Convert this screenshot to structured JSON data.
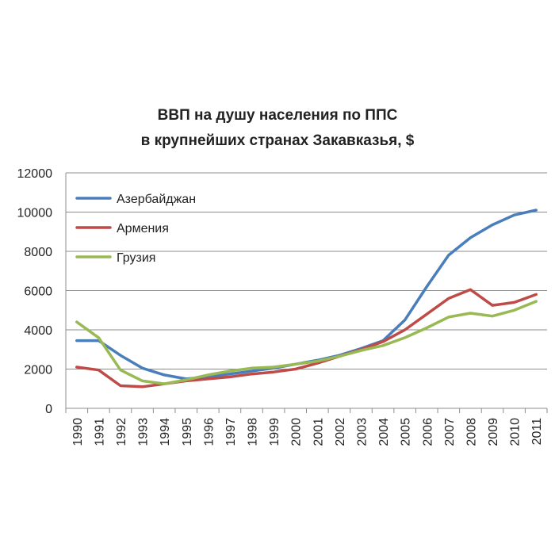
{
  "chart_data": {
    "type": "line",
    "title_line1": "ВВП на душу населения по ППС",
    "title_line2": "в крупнейших странах Закавказья, $",
    "xlabel": "",
    "ylabel": "",
    "categories": [
      "1990",
      "1991",
      "1992",
      "1993",
      "1994",
      "1995",
      "1996",
      "1997",
      "1998",
      "1999",
      "2000",
      "2001",
      "2002",
      "2003",
      "2004",
      "2005",
      "2006",
      "2007",
      "2008",
      "2009",
      "2010",
      "2011"
    ],
    "ylim": [
      0,
      12000
    ],
    "yticks": [
      "0",
      "2000",
      "4000",
      "6000",
      "8000",
      "10000",
      "12000"
    ],
    "grid": true,
    "legend_position": "top-left",
    "series": [
      {
        "name": "Азербайджан",
        "color": "#4a7ebb",
        "values": [
          3450,
          3450,
          2700,
          2050,
          1700,
          1500,
          1600,
          1750,
          1900,
          2050,
          2250,
          2450,
          2700,
          3050,
          3450,
          4500,
          6200,
          7800,
          8700,
          9350,
          9850,
          10100
        ]
      },
      {
        "name": "Армения",
        "color": "#be4b48",
        "values": [
          2100,
          1950,
          1150,
          1100,
          1250,
          1400,
          1500,
          1600,
          1750,
          1850,
          2000,
          2300,
          2650,
          3000,
          3400,
          4000,
          4800,
          5600,
          6050,
          5250,
          5400,
          5800
        ]
      },
      {
        "name": "Грузия",
        "color": "#98b954",
        "values": [
          4400,
          3600,
          1950,
          1400,
          1250,
          1450,
          1700,
          1900,
          2050,
          2100,
          2250,
          2400,
          2650,
          2950,
          3200,
          3600,
          4100,
          4650,
          4850,
          4700,
          5000,
          5450
        ]
      }
    ]
  }
}
